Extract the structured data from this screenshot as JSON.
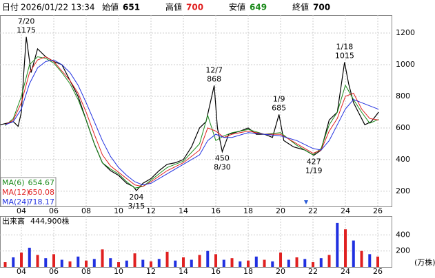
{
  "header": {
    "date_label": "日付",
    "datetime": "2026/01/22 13:34",
    "open": {
      "label": "始値",
      "value": 651
    },
    "high": {
      "label": "高値",
      "value": 700
    },
    "low": {
      "label": "安値",
      "value": 649
    },
    "close": {
      "label": "終値",
      "value": 700
    }
  },
  "chart_data": [
    {
      "type": "line",
      "xlim": [
        2002.68,
        2026.85
      ],
      "ylim": [
        104,
        1313
      ],
      "grid": true,
      "xticks": [
        {
          "value": 2004,
          "label": "04"
        },
        {
          "value": 2006,
          "label": "06"
        },
        {
          "value": 2008,
          "label": "08"
        },
        {
          "value": 2010,
          "label": "10"
        },
        {
          "value": 2012,
          "label": "12"
        },
        {
          "value": 2014,
          "label": "14"
        },
        {
          "value": 2016,
          "label": "16"
        },
        {
          "value": 2018,
          "label": "18"
        },
        {
          "value": 2020,
          "label": "20"
        },
        {
          "value": 2022,
          "label": "22"
        },
        {
          "value": 2024,
          "label": "24"
        },
        {
          "value": 2026,
          "label": "26"
        }
      ],
      "yticks": [
        200,
        400,
        600,
        800,
        1000,
        1200
      ],
      "series": [
        {
          "name": "price",
          "color": "#000000",
          "x": [
            2002.7,
            2003.5,
            2003.8,
            2004.0,
            2004.15,
            2004.3,
            2004.6,
            2005.0,
            2005.5,
            2006.0,
            2006.5,
            2007.0,
            2007.5,
            2008.0,
            2008.5,
            2009.0,
            2009.5,
            2010.0,
            2010.5,
            2010.9,
            2011.1,
            2011.5,
            2012.0,
            2012.5,
            2013.0,
            2013.5,
            2014.0,
            2014.5,
            2015.0,
            2015.4,
            2015.9,
            2016.1,
            2016.4,
            2016.8,
            2017.5,
            2018.0,
            2018.5,
            2019.0,
            2019.5,
            2019.9,
            2020.2,
            2020.8,
            2021.5,
            2022.05,
            2022.5,
            2023.0,
            2023.5,
            2023.95,
            2024.2,
            2024.5,
            2024.8,
            2025.2,
            2025.6,
            2026.05
          ],
          "values": [
            620,
            640,
            610,
            700,
            950,
            1175,
            950,
            1100,
            1050,
            1020,
            1000,
            900,
            800,
            650,
            500,
            380,
            330,
            300,
            250,
            230,
            204,
            250,
            280,
            330,
            370,
            380,
            400,
            480,
            600,
            640,
            868,
            600,
            450,
            560,
            580,
            600,
            560,
            560,
            540,
            685,
            520,
            480,
            460,
            427,
            460,
            650,
            700,
            1015,
            880,
            760,
            700,
            620,
            640,
            700
          ]
        },
        {
          "name": "MA(6)",
          "color": "#1a8a1a",
          "legend_value": 654.67,
          "x": [
            2003.0,
            2003.5,
            2004.0,
            2004.5,
            2005.0,
            2005.5,
            2006.0,
            2006.5,
            2007.0,
            2007.5,
            2008.0,
            2008.5,
            2009.0,
            2009.5,
            2010.0,
            2010.5,
            2011.0,
            2011.5,
            2012.0,
            2013.0,
            2014.0,
            2015.0,
            2015.5,
            2016.0,
            2016.5,
            2017.0,
            2018.0,
            2019.0,
            2020.0,
            2021.0,
            2022.0,
            2022.5,
            2023.0,
            2023.5,
            2024.0,
            2024.5,
            2025.0,
            2025.5,
            2026.05
          ],
          "values": [
            615,
            660,
            800,
            1000,
            1050,
            1040,
            1010,
            950,
            880,
            780,
            650,
            500,
            380,
            340,
            310,
            260,
            220,
            230,
            270,
            350,
            390,
            500,
            680,
            520,
            550,
            570,
            590,
            560,
            570,
            490,
            430,
            470,
            620,
            700,
            870,
            780,
            700,
            630,
            654.67
          ]
        },
        {
          "name": "MA(12)",
          "color": "#e02020",
          "legend_value": 650.08,
          "x": [
            2003.0,
            2003.5,
            2004.0,
            2004.5,
            2005.0,
            2005.5,
            2006.0,
            2006.5,
            2007.0,
            2007.5,
            2008.0,
            2008.5,
            2009.0,
            2009.5,
            2010.0,
            2010.5,
            2011.0,
            2011.5,
            2012.0,
            2013.0,
            2014.0,
            2015.0,
            2015.5,
            2016.0,
            2016.5,
            2017.0,
            2018.0,
            2019.0,
            2020.0,
            2021.0,
            2022.0,
            2022.5,
            2023.0,
            2023.5,
            2024.0,
            2024.5,
            2025.0,
            2025.5,
            2026.05
          ],
          "values": [
            620,
            650,
            760,
            950,
            1030,
            1050,
            1020,
            960,
            900,
            820,
            700,
            560,
            430,
            360,
            320,
            280,
            240,
            230,
            260,
            330,
            380,
            460,
            600,
            580,
            540,
            560,
            580,
            560,
            560,
            500,
            440,
            460,
            580,
            660,
            800,
            820,
            720,
            660,
            650.08
          ]
        },
        {
          "name": "MA(24)",
          "color": "#2030e0",
          "legend_value": 718.17,
          "x": [
            2003.0,
            2003.5,
            2004.0,
            2004.5,
            2005.0,
            2005.5,
            2006.0,
            2006.5,
            2007.0,
            2007.5,
            2008.0,
            2008.5,
            2009.0,
            2009.5,
            2010.0,
            2010.5,
            2011.0,
            2011.5,
            2012.0,
            2013.0,
            2014.0,
            2015.0,
            2015.5,
            2016.0,
            2016.5,
            2017.0,
            2018.0,
            2019.0,
            2020.0,
            2021.0,
            2022.0,
            2022.5,
            2023.0,
            2023.5,
            2024.0,
            2024.5,
            2025.0,
            2025.5,
            2026.05
          ],
          "values": [
            620,
            640,
            720,
            880,
            980,
            1020,
            1030,
            1000,
            950,
            870,
            760,
            640,
            520,
            420,
            350,
            300,
            260,
            240,
            250,
            310,
            370,
            430,
            520,
            560,
            540,
            540,
            570,
            560,
            550,
            520,
            470,
            460,
            520,
            620,
            720,
            780,
            760,
            740,
            718.17
          ]
        }
      ],
      "annotations": [
        {
          "date": "7/20",
          "value": 1175,
          "x": 2004.3,
          "above": true
        },
        {
          "date": "3/15",
          "value": 204,
          "x": 2011.1,
          "above": false
        },
        {
          "date": "12/7",
          "value": 868,
          "x": 2015.9,
          "above": true
        },
        {
          "date": "8/30",
          "value": 450,
          "x": 2016.4,
          "above": false
        },
        {
          "date": "1/9",
          "value": 685,
          "x": 2019.9,
          "above": true
        },
        {
          "date": "1/19",
          "value": 427,
          "x": 2022.05,
          "above": false
        },
        {
          "date": "1/18",
          "value": 1015,
          "x": 2023.95,
          "above": true
        }
      ]
    },
    {
      "type": "bar",
      "title": "出来高",
      "value_text": "444,900株",
      "unit": "(万株)",
      "xlim": [
        2002.68,
        2026.85
      ],
      "ylim": [
        0,
        635
      ],
      "xticks": [
        {
          "value": 2004,
          "label": "04"
        },
        {
          "value": 2006,
          "label": "06"
        },
        {
          "value": 2008,
          "label": "08"
        },
        {
          "value": 2010,
          "label": "10"
        },
        {
          "value": 2012,
          "label": "12"
        },
        {
          "value": 2014,
          "label": "14"
        },
        {
          "value": 2016,
          "label": "16"
        },
        {
          "value": 2018,
          "label": "18"
        },
        {
          "value": 2020,
          "label": "20"
        },
        {
          "value": 2022,
          "label": "22"
        },
        {
          "value": 2024,
          "label": "24"
        },
        {
          "value": 2026,
          "label": "26"
        }
      ],
      "yticks": [
        200,
        400
      ],
      "colors": [
        "#e02020",
        "#2030e0"
      ],
      "x": [
        2003.0,
        2003.5,
        2004.0,
        2004.5,
        2005.0,
        2005.5,
        2006.0,
        2006.5,
        2007.0,
        2007.5,
        2008.0,
        2008.5,
        2009.0,
        2009.5,
        2010.0,
        2010.5,
        2011.0,
        2011.5,
        2012.0,
        2012.5,
        2013.0,
        2013.5,
        2014.0,
        2014.5,
        2015.0,
        2015.5,
        2016.0,
        2016.5,
        2017.0,
        2017.5,
        2018.0,
        2018.5,
        2019.0,
        2019.5,
        2020.0,
        2020.5,
        2021.0,
        2021.5,
        2022.0,
        2022.5,
        2023.0,
        2023.5,
        2024.0,
        2024.5,
        2025.0,
        2025.5,
        2026.0
      ],
      "values": [
        60,
        120,
        180,
        240,
        150,
        110,
        160,
        90,
        70,
        130,
        80,
        100,
        220,
        110,
        60,
        80,
        170,
        90,
        70,
        100,
        190,
        80,
        120,
        90,
        150,
        200,
        160,
        90,
        110,
        70,
        80,
        130,
        90,
        70,
        180,
        90,
        120,
        100,
        60,
        110,
        150,
        550,
        470,
        330,
        200,
        160,
        130
      ]
    }
  ]
}
